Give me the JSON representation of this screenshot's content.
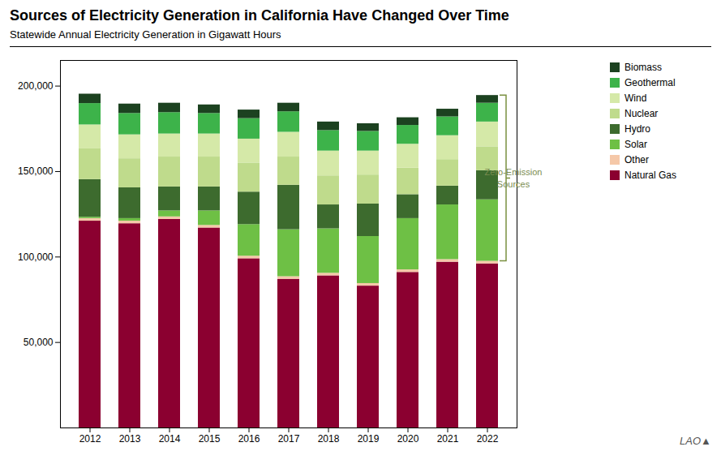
{
  "chart_data": {
    "type": "bar",
    "stacked": true,
    "title": "Sources of Electricity Generation in California Have Changed Over Time",
    "subtitle": "Statewide Annual Electricity Generation in Gigawatt Hours",
    "caption": "LAO▲",
    "categories": [
      "2012",
      "2013",
      "2014",
      "2015",
      "2016",
      "2017",
      "2018",
      "2019",
      "2020",
      "2021",
      "2022"
    ],
    "series": [
      {
        "name": "Natural Gas",
        "color": "#8B0030",
        "values": [
          121000,
          119500,
          122000,
          117000,
          99000,
          87000,
          89000,
          83000,
          91000,
          97000,
          96000
        ]
      },
      {
        "name": "Other",
        "color": "#F5C8A8",
        "values": [
          1500,
          1500,
          1500,
          1500,
          1500,
          1500,
          1500,
          1500,
          1500,
          1500,
          1500
        ]
      },
      {
        "name": "Solar",
        "color": "#6EC045",
        "values": [
          800,
          1500,
          3500,
          8500,
          18500,
          27500,
          26000,
          27500,
          30000,
          32000,
          36000
        ]
      },
      {
        "name": "Hydro",
        "color": "#3D6B2E",
        "values": [
          22000,
          18000,
          14000,
          14000,
          19000,
          26000,
          14000,
          19000,
          14000,
          11000,
          17000
        ]
      },
      {
        "name": "Nuclear",
        "color": "#BFDB8C",
        "values": [
          18000,
          17000,
          17500,
          17500,
          17000,
          16500,
          17000,
          17000,
          15500,
          15500,
          14000
        ]
      },
      {
        "name": "Wind",
        "color": "#D5E9A8",
        "values": [
          14000,
          14000,
          13500,
          13500,
          14000,
          14500,
          14500,
          14000,
          14000,
          14000,
          14500
        ]
      },
      {
        "name": "Geothermal",
        "color": "#3DB34A",
        "values": [
          12500,
          12500,
          12500,
          12000,
          12000,
          12000,
          12000,
          11500,
          11000,
          11000,
          11000
        ]
      },
      {
        "name": "Biomass",
        "color": "#1C4220",
        "values": [
          5500,
          5500,
          5500,
          5000,
          5000,
          5000,
          5000,
          4500,
          4500,
          4500,
          4500
        ]
      }
    ],
    "ylim": [
      0,
      215000
    ],
    "yticks": [
      {
        "value": 50000,
        "label": "50,000"
      },
      {
        "value": 100000,
        "label": "100,000"
      },
      {
        "value": 150000,
        "label": "150,000"
      },
      {
        "value": 200000,
        "label": "200,000"
      }
    ],
    "grid": false,
    "legend": "upper right",
    "annotations": [
      {
        "text": "Zero-Emission\nSources",
        "x": "2022",
        "y": [
          97500,
          194500
        ],
        "color": "#7A9040",
        "text_color": "#7A8C50"
      }
    ]
  }
}
